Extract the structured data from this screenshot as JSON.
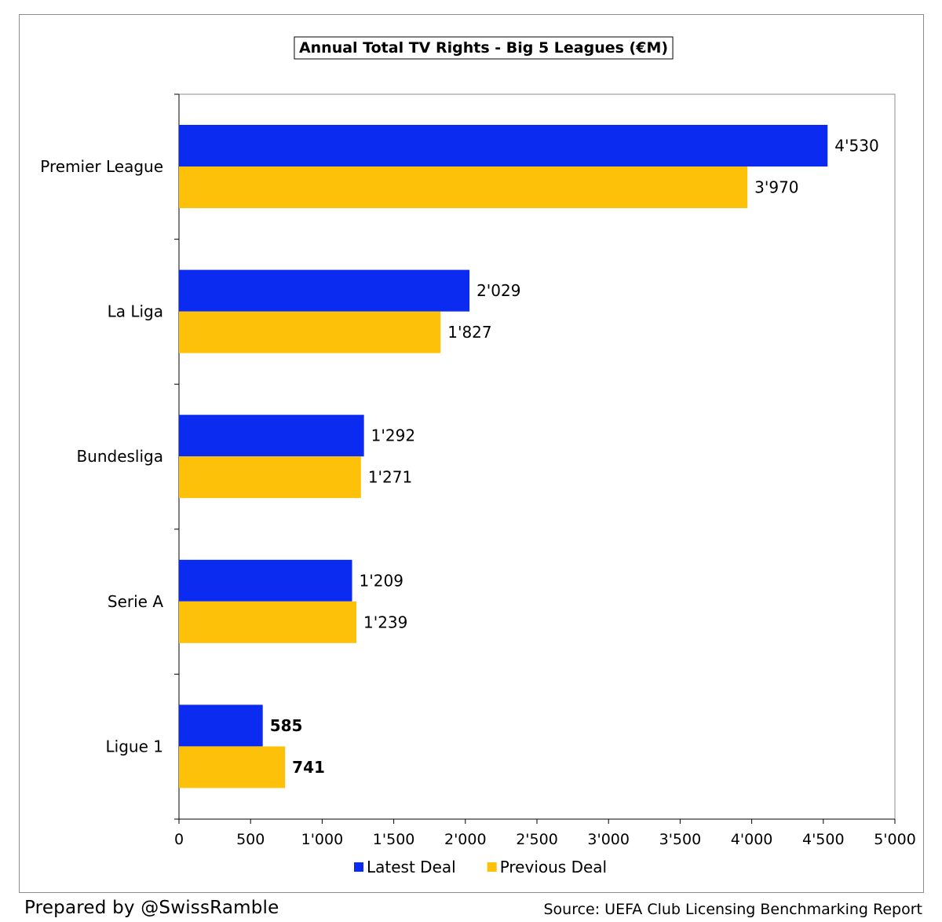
{
  "chart_data": {
    "type": "bar",
    "orientation": "horizontal",
    "title": "Annual Total TV Rights - Big 5 Leagues (€M)",
    "categories": [
      "Premier League",
      "La Liga",
      "Bundesliga",
      "Serie A",
      "Ligue 1"
    ],
    "series": [
      {
        "name": "Latest Deal",
        "color": "#0b2cf0",
        "values": [
          4530,
          2029,
          1292,
          1209,
          585
        ],
        "labels": [
          "4'530",
          "2'029",
          "1'292",
          "1'209",
          "585"
        ]
      },
      {
        "name": "Previous Deal",
        "color": "#fdc10a",
        "values": [
          3970,
          1827,
          1271,
          1239,
          741
        ],
        "labels": [
          "3'970",
          "1'827",
          "1'271",
          "1'239",
          "741"
        ]
      }
    ],
    "bold_categories": [
      "Ligue 1"
    ],
    "xlim": [
      0,
      5000
    ],
    "x_ticks": [
      0,
      500,
      1000,
      1500,
      2000,
      2500,
      3000,
      3500,
      4000,
      4500,
      5000
    ],
    "x_tick_labels": [
      "0",
      "500",
      "1'000",
      "1'500",
      "2'000",
      "2'500",
      "3'000",
      "3'500",
      "4'000",
      "4'500",
      "5'000"
    ],
    "grid": false,
    "legend_position": "bottom"
  },
  "footer": {
    "prepared_by": "Prepared by @SwissRamble",
    "source": "Source: UEFA Club Licensing Benchmarking Report"
  }
}
